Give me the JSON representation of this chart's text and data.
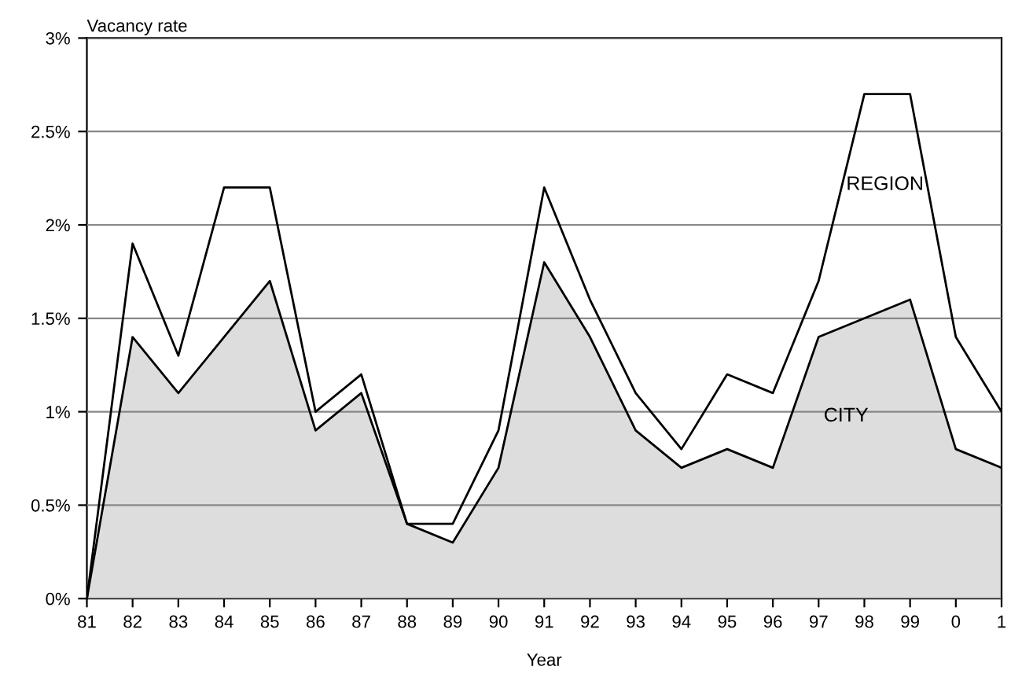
{
  "chart_data": {
    "type": "area",
    "xlabel": "Year",
    "ylabel": "Vacancy rate",
    "categories": [
      "81",
      "82",
      "83",
      "84",
      "85",
      "86",
      "87",
      "88",
      "89",
      "90",
      "91",
      "92",
      "93",
      "94",
      "95",
      "96",
      "97",
      "98",
      "99",
      "0",
      "1"
    ],
    "series": [
      {
        "name": "CITY",
        "color": "#dddddd",
        "values": [
          0,
          1.4,
          1.1,
          1.4,
          1.7,
          0.9,
          1.1,
          0.4,
          0.3,
          0.7,
          1.8,
          1.4,
          0.9,
          0.7,
          0.8,
          0.7,
          1.4,
          1.5,
          1.6,
          0.8,
          0.7
        ]
      },
      {
        "name": "REGION",
        "type": "line",
        "color": "#000000",
        "values": [
          0,
          1.9,
          1.3,
          2.2,
          2.2,
          1.0,
          1.2,
          0.4,
          0.4,
          0.9,
          2.2,
          1.6,
          1.1,
          0.8,
          1.2,
          1.1,
          1.7,
          2.7,
          2.7,
          1.4,
          1.0
        ]
      }
    ],
    "ylim": [
      0,
      3
    ],
    "yticks": [
      {
        "value": 0,
        "label": "0%"
      },
      {
        "value": 0.5,
        "label": "0.5%"
      },
      {
        "value": 1,
        "label": "1%"
      },
      {
        "value": 1.5,
        "label": "1.5%"
      },
      {
        "value": 2,
        "label": "2%"
      },
      {
        "value": 2.5,
        "label": "2.5%"
      },
      {
        "value": 3,
        "label": "3%"
      }
    ],
    "grid": "y",
    "legend": false
  }
}
